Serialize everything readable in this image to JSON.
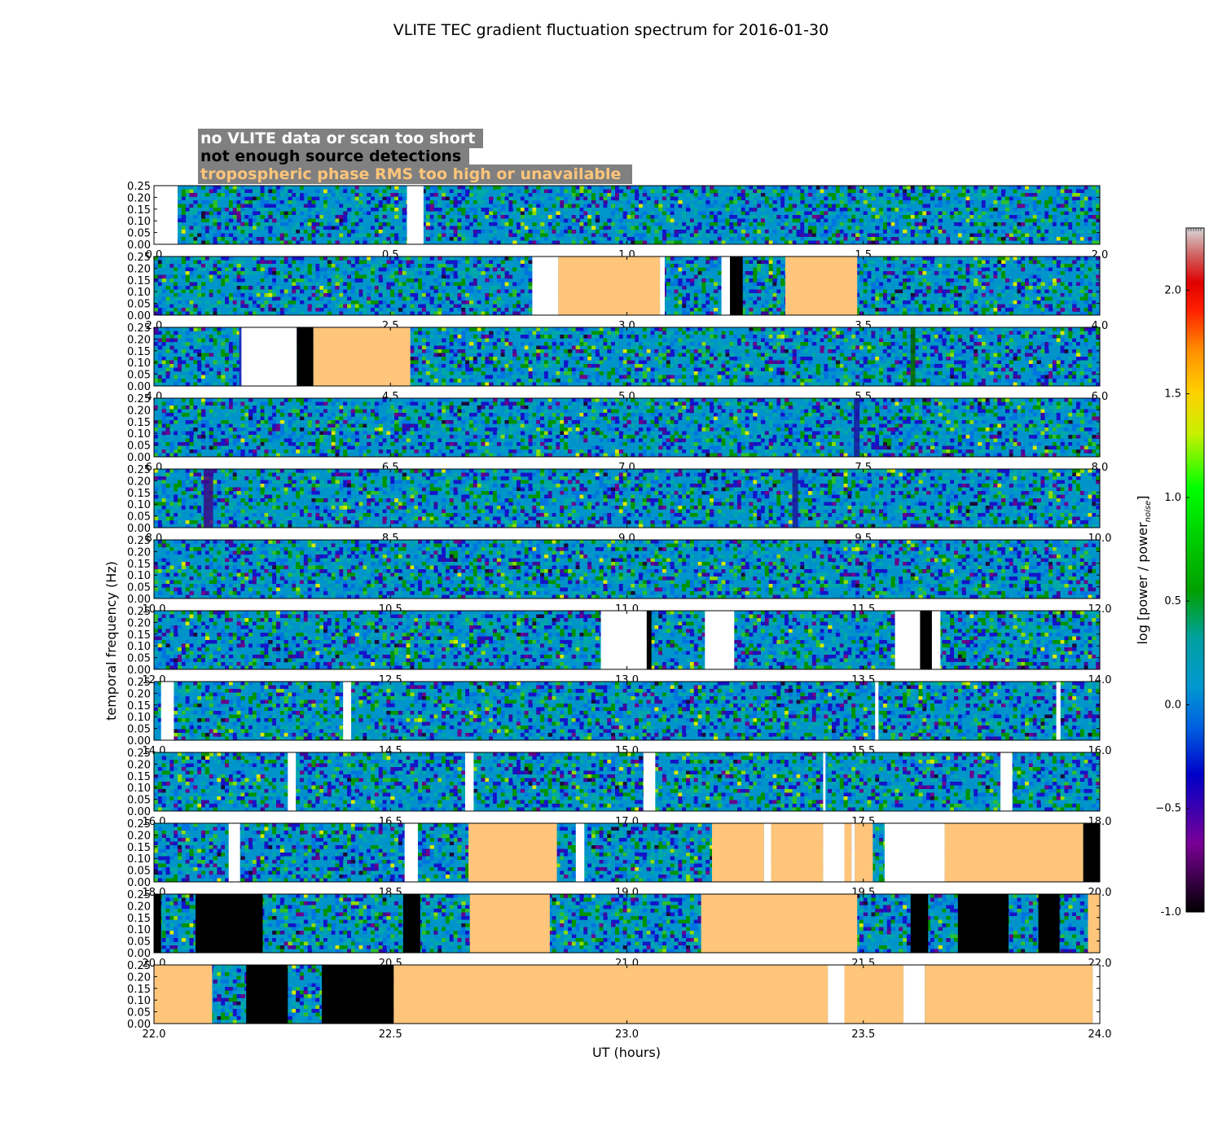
{
  "chart_data": {
    "type": "heatmap",
    "title": "VLITE TEC gradient fluctuation spectrum for 2016-01-30",
    "xlabel": "UT (hours)",
    "ylabel": "temporal frequency (Hz)",
    "colorbar": {
      "label": "log [power / power_noise]",
      "label_main": "log [power / power",
      "label_sub": "noise",
      "label_end": "]",
      "range": [
        -1.0,
        2.3
      ],
      "ticks": [
        "-1.0",
        "−0.5",
        "0.0",
        "0.5",
        "1.0",
        "1.5",
        "2.0"
      ],
      "tick_values": [
        -1.0,
        -0.5,
        0.0,
        0.5,
        1.0,
        1.5,
        2.0
      ]
    },
    "legend": [
      {
        "text": "no VLITE data or scan too short",
        "color": "#ffffff"
      },
      {
        "text": "not enough source detections",
        "color": "#000000"
      },
      {
        "text": "tropospheric phase RMS too high or unavailable",
        "color": "#ffc57a"
      }
    ],
    "legend_box_color": "#808080",
    "flag_colors": {
      "nodata": "#ffffff",
      "nodet": "#000000",
      "tropo": "#ffc57a"
    },
    "ylim": [
      0,
      0.25
    ],
    "y_ticks": [
      "0.00",
      "0.05",
      "0.10",
      "0.15",
      "0.20",
      "0.25"
    ],
    "panels": [
      {
        "range": [
          0,
          2
        ],
        "xticks": [
          "0.0",
          "0.5",
          "1.0",
          "1.5",
          "2.0"
        ],
        "flags": [
          {
            "s": 0.0,
            "e": 0.05,
            "c": "nodata"
          },
          {
            "s": 0.535,
            "e": 0.57,
            "c": "nodata"
          }
        ],
        "streaks": []
      },
      {
        "range": [
          2,
          4
        ],
        "xticks": [
          "2.0",
          "2.5",
          "3.0",
          "3.5",
          "4.0"
        ],
        "flags": [
          {
            "s": 2.8,
            "e": 2.855,
            "c": "nodata"
          },
          {
            "s": 2.855,
            "e": 3.07,
            "c": "tropo"
          },
          {
            "s": 3.07,
            "e": 3.08,
            "c": "nodata"
          },
          {
            "s": 3.2,
            "e": 3.218,
            "c": "nodata"
          },
          {
            "s": 3.218,
            "e": 3.245,
            "c": "nodet"
          },
          {
            "s": 3.335,
            "e": 3.487,
            "c": "tropo"
          }
        ],
        "streaks": []
      },
      {
        "range": [
          4,
          6
        ],
        "xticks": [
          "4.0",
          "4.5",
          "5.0",
          "5.5",
          "6.0"
        ],
        "flags": [
          {
            "s": 4.185,
            "e": 4.302,
            "c": "nodata"
          },
          {
            "s": 4.302,
            "e": 4.337,
            "c": "nodet"
          },
          {
            "s": 4.337,
            "e": 4.542,
            "c": "tropo"
          }
        ],
        "streaks": [
          {
            "x": 4.18,
            "w": 0.006,
            "color": "#2020c0"
          },
          {
            "x": 5.6,
            "w": 0.01,
            "color": "#006400"
          }
        ]
      },
      {
        "range": [
          6,
          8
        ],
        "xticks": [
          "6.0",
          "6.5",
          "7.0",
          "7.5",
          "8.0"
        ],
        "flags": [],
        "streaks": [
          {
            "x": 7.48,
            "w": 0.012,
            "color": "#1a1aa0"
          }
        ]
      },
      {
        "range": [
          8,
          10
        ],
        "xticks": [
          "8.0",
          "8.5",
          "9.0",
          "9.5",
          "10.0"
        ],
        "flags": [],
        "streaks": [
          {
            "x": 8.105,
            "w": 0.02,
            "color": "#3a0a8a"
          },
          {
            "x": 9.35,
            "w": 0.012,
            "color": "#1a1aa0"
          }
        ]
      },
      {
        "range": [
          10,
          12
        ],
        "xticks": [
          "10.0",
          "10.5",
          "11.0",
          "11.5",
          "12.0"
        ],
        "flags": [],
        "streaks": []
      },
      {
        "range": [
          12,
          14
        ],
        "xticks": [
          "12.0",
          "12.5",
          "13.0",
          "13.5",
          "14.0"
        ],
        "flags": [
          {
            "s": 12.945,
            "e": 13.042,
            "c": "nodata"
          },
          {
            "s": 13.042,
            "e": 13.052,
            "c": "nodet"
          },
          {
            "s": 13.165,
            "e": 13.227,
            "c": "nodata"
          },
          {
            "s": 13.567,
            "e": 13.62,
            "c": "nodata"
          },
          {
            "s": 13.62,
            "e": 13.645,
            "c": "nodet"
          },
          {
            "s": 13.645,
            "e": 13.663,
            "c": "nodata"
          }
        ],
        "streaks": []
      },
      {
        "range": [
          14,
          16
        ],
        "xticks": [
          "14.0",
          "14.5",
          "15.0",
          "15.5",
          "16.0"
        ],
        "flags": [
          {
            "s": 14.015,
            "e": 14.042,
            "c": "nodata"
          },
          {
            "s": 14.4,
            "e": 14.417,
            "c": "nodata"
          },
          {
            "s": 15.525,
            "e": 15.532,
            "c": "nodata"
          },
          {
            "s": 15.908,
            "e": 15.917,
            "c": "nodata"
          }
        ],
        "streaks": []
      },
      {
        "range": [
          16,
          18
        ],
        "xticks": [
          "16.0",
          "16.5",
          "17.0",
          "17.5",
          "18.0"
        ],
        "flags": [
          {
            "s": 16.283,
            "e": 16.3,
            "c": "nodata"
          },
          {
            "s": 16.658,
            "e": 16.676,
            "c": "nodata"
          },
          {
            "s": 17.035,
            "e": 17.06,
            "c": "nodata"
          },
          {
            "s": 17.415,
            "e": 17.42,
            "c": "nodata"
          },
          {
            "s": 17.79,
            "e": 17.815,
            "c": "nodata"
          }
        ],
        "streaks": []
      },
      {
        "range": [
          18,
          20
        ],
        "xticks": [
          "18.0",
          "18.5",
          "19.0",
          "19.5",
          "20.0"
        ],
        "flags": [
          {
            "s": 18.158,
            "e": 18.182,
            "c": "nodata"
          },
          {
            "s": 18.53,
            "e": 18.558,
            "c": "nodata"
          },
          {
            "s": 18.665,
            "e": 18.852,
            "c": "tropo"
          },
          {
            "s": 18.892,
            "e": 18.91,
            "c": "nodata"
          },
          {
            "s": 19.18,
            "e": 19.29,
            "c": "tropo"
          },
          {
            "s": 19.29,
            "e": 19.305,
            "c": "nodata"
          },
          {
            "s": 19.305,
            "e": 19.415,
            "c": "tropo"
          },
          {
            "s": 19.415,
            "e": 19.46,
            "c": "nodata"
          },
          {
            "s": 19.46,
            "e": 19.475,
            "c": "tropo"
          },
          {
            "s": 19.475,
            "e": 19.482,
            "c": "nodata"
          },
          {
            "s": 19.482,
            "e": 19.52,
            "c": "tropo"
          },
          {
            "s": 19.545,
            "e": 19.672,
            "c": "nodata"
          },
          {
            "s": 19.672,
            "e": 19.965,
            "c": "tropo"
          },
          {
            "s": 19.965,
            "e": 20.0,
            "c": "nodet"
          }
        ],
        "streaks": []
      },
      {
        "range": [
          20,
          22
        ],
        "xticks": [
          "20.0",
          "20.5",
          "21.0",
          "21.5",
          "22.0"
        ],
        "flags": [
          {
            "s": 20.0,
            "e": 20.015,
            "c": "nodet"
          },
          {
            "s": 20.088,
            "e": 20.23,
            "c": "nodet"
          },
          {
            "s": 20.527,
            "e": 20.563,
            "c": "nodet"
          },
          {
            "s": 20.668,
            "e": 20.837,
            "c": "tropo"
          },
          {
            "s": 21.157,
            "e": 21.487,
            "c": "tropo"
          },
          {
            "s": 21.6,
            "e": 21.637,
            "c": "nodet"
          },
          {
            "s": 21.7,
            "e": 21.807,
            "c": "nodet"
          },
          {
            "s": 21.87,
            "e": 21.915,
            "c": "nodet"
          },
          {
            "s": 21.975,
            "e": 22.0,
            "c": "tropo"
          }
        ],
        "streaks": []
      },
      {
        "range": [
          22,
          24
        ],
        "xticks": [
          "22.0",
          "22.5",
          "23.0",
          "23.5",
          "24.0"
        ],
        "flags": [
          {
            "s": 22.0,
            "e": 22.123,
            "c": "tropo"
          },
          {
            "s": 22.195,
            "e": 22.283,
            "c": "nodet"
          },
          {
            "s": 22.355,
            "e": 22.507,
            "c": "nodet"
          },
          {
            "s": 22.507,
            "e": 23.425,
            "c": "tropo"
          },
          {
            "s": 23.425,
            "e": 23.46,
            "c": "nodata"
          },
          {
            "s": 23.46,
            "e": 23.585,
            "c": "tropo"
          },
          {
            "s": 23.585,
            "e": 23.63,
            "c": "nodata"
          },
          {
            "s": 23.63,
            "e": 23.985,
            "c": "tropo"
          },
          {
            "s": 23.985,
            "e": 24.0,
            "c": "nodata"
          }
        ],
        "streaks": []
      }
    ]
  }
}
